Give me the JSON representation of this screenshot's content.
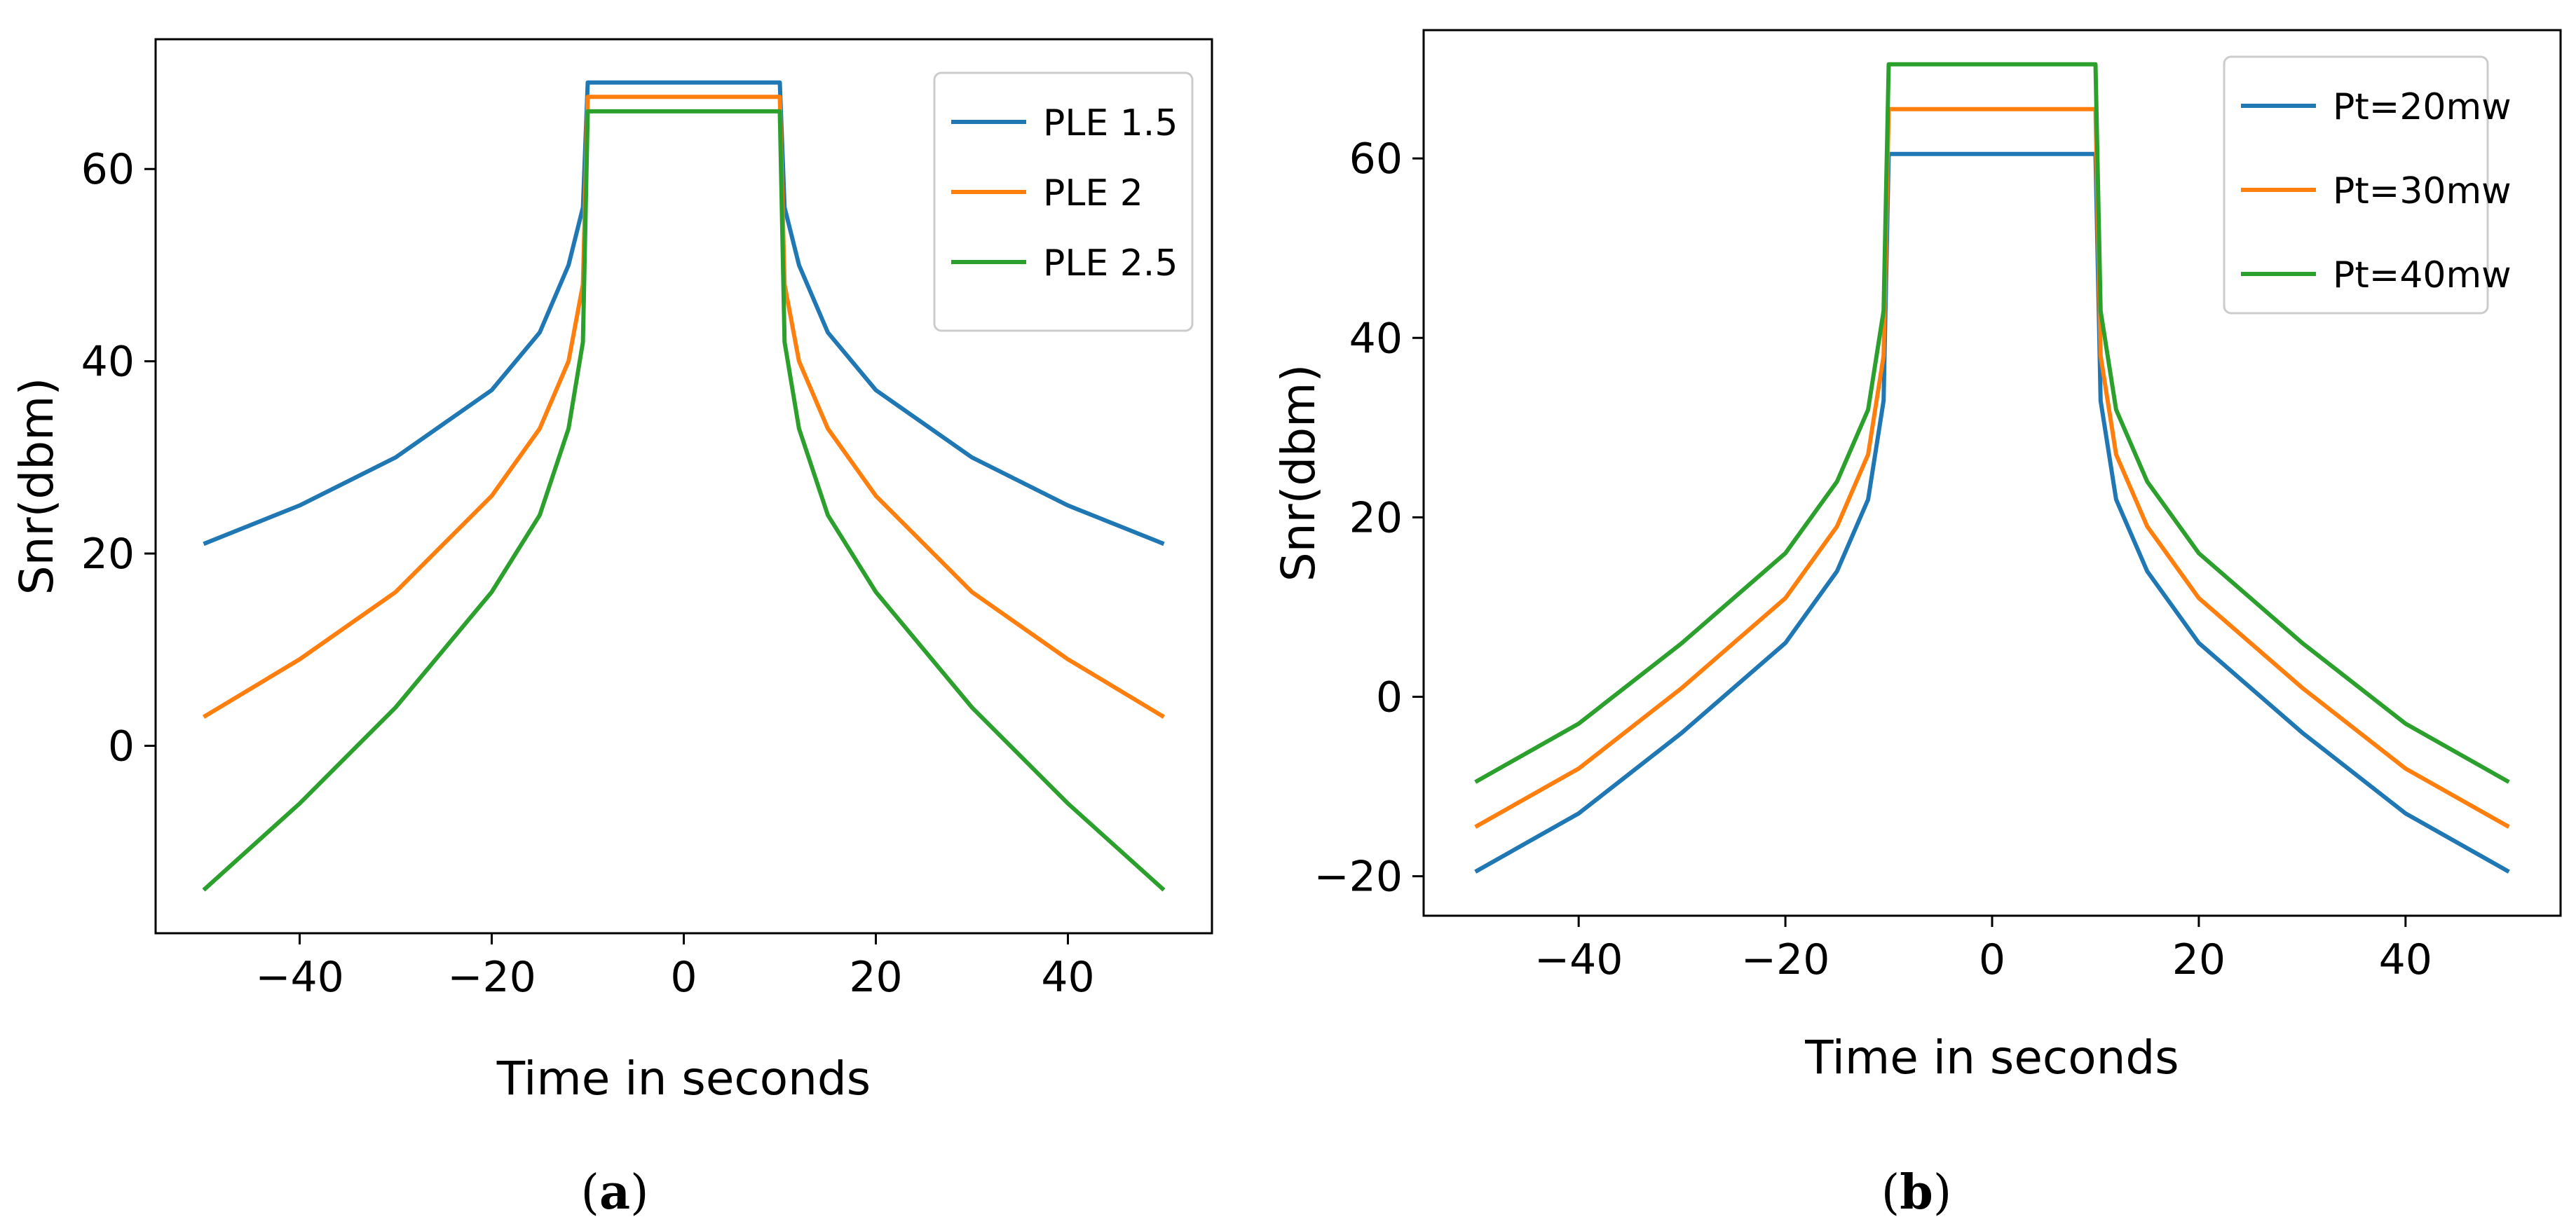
{
  "chart_data": [
    {
      "type": "line",
      "xlabel": "Time in seconds",
      "ylabel": "Snr(dbm)",
      "xlim": [
        -55,
        55
      ],
      "ylim": [
        -19.5,
        73.5
      ],
      "xticks": [
        -40,
        -20,
        0,
        20,
        40
      ],
      "yticks": [
        0,
        20,
        40,
        60
      ],
      "grid": false,
      "legend_position": "top-right",
      "caption_label": "a",
      "x": [
        -50,
        -40,
        -30,
        -20,
        -15,
        -12,
        -10.5,
        -10,
        10,
        10.5,
        12,
        15,
        20,
        30,
        40,
        50
      ],
      "series": [
        {
          "name": "PLE 1.5",
          "color": "#1f77b4",
          "values": [
            21,
            25,
            30,
            37,
            43,
            50,
            56,
            69,
            69,
            56,
            50,
            43,
            37,
            30,
            25,
            21
          ]
        },
        {
          "name": "PLE 2",
          "color": "#ff7f0e",
          "values": [
            3,
            9,
            16,
            26,
            33,
            40,
            48,
            67.5,
            67.5,
            48,
            40,
            33,
            26,
            16,
            9,
            3
          ]
        },
        {
          "name": "PLE 2.5",
          "color": "#2ca02c",
          "values": [
            -15,
            -6,
            4,
            16,
            24,
            33,
            42,
            66,
            66,
            42,
            33,
            24,
            16,
            4,
            -6,
            -15
          ]
        }
      ]
    },
    {
      "type": "line",
      "xlabel": "Time in seconds",
      "ylabel": "Snr(dbm)",
      "xlim": [
        -55,
        55
      ],
      "ylim": [
        -24.4,
        74.3
      ],
      "xticks": [
        -40,
        -20,
        0,
        20,
        40
      ],
      "yticks": [
        -20,
        0,
        20,
        40,
        60
      ],
      "grid": false,
      "legend_position": "top-right",
      "caption_label": "b",
      "x": [
        -50,
        -40,
        -30,
        -20,
        -15,
        -12,
        -10.5,
        -10,
        10,
        10.5,
        12,
        15,
        20,
        30,
        40,
        50
      ],
      "series": [
        {
          "name": "Pt=20mw",
          "color": "#1f77b4",
          "values": [
            -19.5,
            -13,
            -4,
            6,
            14,
            22,
            33,
            60.5,
            60.5,
            33,
            22,
            14,
            6,
            -4,
            -13,
            -19.5
          ]
        },
        {
          "name": "Pt=30mw",
          "color": "#ff7f0e",
          "values": [
            -14.5,
            -8,
            1,
            11,
            19,
            27,
            38,
            65.5,
            65.5,
            38,
            27,
            19,
            11,
            1,
            -8,
            -14.5
          ]
        },
        {
          "name": "Pt=40mw",
          "color": "#2ca02c",
          "values": [
            -9.5,
            -3,
            6,
            16,
            24,
            32,
            43,
            70.5,
            70.5,
            43,
            32,
            24,
            16,
            6,
            -3,
            -9.5
          ]
        }
      ]
    }
  ]
}
